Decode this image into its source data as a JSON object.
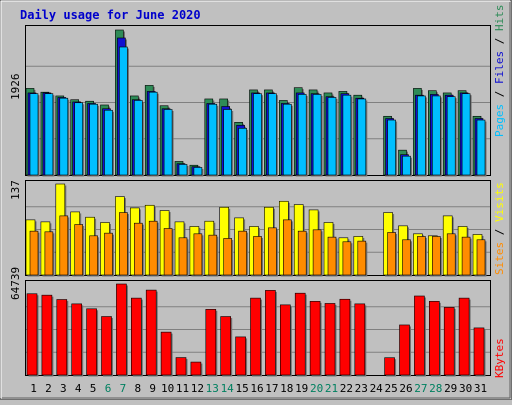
{
  "chart_data": [
    {
      "type": "bar",
      "title": "Daily usage for June 2020",
      "ylabel_max": "1926",
      "series_labels": [
        "Pages",
        "Files",
        "Hits"
      ],
      "categories": [
        "1",
        "2",
        "3",
        "4",
        "5",
        "6",
        "7",
        "8",
        "9",
        "10",
        "11",
        "12",
        "13",
        "14",
        "15",
        "16",
        "17",
        "18",
        "19",
        "20",
        "21",
        "22",
        "23",
        "24",
        "25",
        "26",
        "27",
        "28",
        "29",
        "30",
        "31"
      ],
      "weekend_days": [
        "6",
        "7",
        "13",
        "14",
        "20",
        "21",
        "27",
        "28"
      ],
      "series": [
        {
          "name": "Hits",
          "color": "#2e8b57",
          "values": [
            1150,
            1100,
            1050,
            1000,
            980,
            930,
            1926,
            1050,
            1190,
            920,
            180,
            130,
            1010,
            1010,
            700,
            1130,
            1130,
            990,
            1160,
            1130,
            1090,
            1110,
            1060,
            0,
            780,
            330,
            1150,
            1120,
            1090,
            1120,
            780
          ]
        },
        {
          "name": "Files",
          "color": "#1010d0",
          "values": [
            1090,
            1090,
            1030,
            970,
            950,
            880,
            1820,
            1000,
            1110,
            880,
            150,
            110,
            950,
            910,
            660,
            1090,
            1090,
            950,
            1090,
            1080,
            1040,
            1080,
            1020,
            0,
            750,
            270,
            1060,
            1070,
            1060,
            1090,
            750
          ]
        },
        {
          "name": "Pages",
          "color": "#00bfff",
          "values": [
            1080,
            1080,
            1020,
            960,
            940,
            860,
            1700,
            990,
            1100,
            870,
            140,
            100,
            940,
            870,
            620,
            1080,
            1080,
            940,
            1070,
            1070,
            1030,
            1060,
            1010,
            0,
            730,
            250,
            1050,
            1050,
            1040,
            1080,
            730
          ]
        }
      ]
    },
    {
      "type": "bar",
      "ylabel_max": "137",
      "series_labels": [
        "Sites",
        "Visits"
      ],
      "series": [
        {
          "name": "Visits",
          "color": "#ffff00",
          "values": [
            83,
            80,
            137,
            95,
            87,
            79,
            118,
            101,
            105,
            97,
            80,
            73,
            81,
            102,
            86,
            73,
            102,
            111,
            106,
            98,
            79,
            56,
            58,
            0,
            94,
            74,
            62,
            59,
            89,
            73,
            61
          ]
        },
        {
          "name": "Sites",
          "color": "#ff8c00",
          "values": [
            66,
            65,
            89,
            76,
            59,
            63,
            94,
            78,
            81,
            70,
            56,
            62,
            60,
            55,
            66,
            58,
            71,
            83,
            66,
            68,
            57,
            50,
            51,
            0,
            64,
            53,
            58,
            58,
            62,
            57,
            53
          ]
        }
      ]
    },
    {
      "type": "bar",
      "ylabel_max": "64739",
      "series_labels": [
        "KBytes"
      ],
      "series": [
        {
          "name": "KBytes",
          "color": "#ff0000",
          "values": [
            57800,
            56800,
            53700,
            50600,
            47100,
            41600,
            64739,
            54700,
            60400,
            30500,
            12400,
            9200,
            46700,
            41600,
            27100,
            54700,
            60200,
            49900,
            58200,
            52400,
            50900,
            53900,
            50600,
            0,
            12300,
            35600,
            56200,
            52400,
            48100,
            54700,
            33500
          ]
        }
      ]
    }
  ]
}
